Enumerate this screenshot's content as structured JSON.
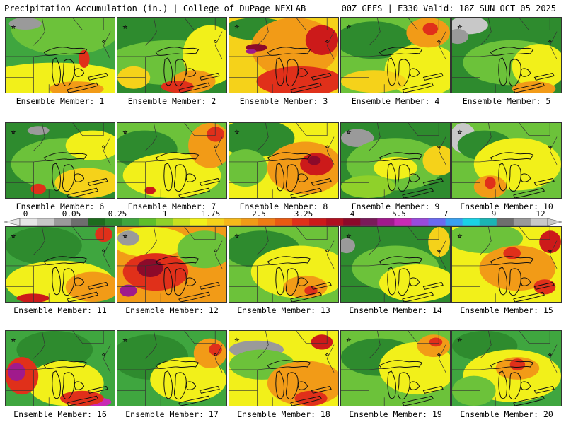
{
  "header": {
    "left": "Precipitation Accumulation (in.) | College of DuPage NEXLAB",
    "right": "00Z GEFS | F330 Valid: 18Z SUN OCT 05 2025"
  },
  "colorbar": {
    "tick_labels": [
      "0",
      "0.05",
      "0.25",
      "1",
      "1.75",
      "2.5",
      "3.25",
      "4",
      "5.5",
      "7",
      "9",
      "12"
    ],
    "colors": [
      "#e6e6e6",
      "#c8c8c8",
      "#9a9a9a",
      "#6e6e6e",
      "#1e6b1e",
      "#2e8b2e",
      "#3fa63f",
      "#5ebf2a",
      "#8fd12a",
      "#c8e020",
      "#f2f01a",
      "#f5d21a",
      "#f5b81a",
      "#f29b17",
      "#ef7c14",
      "#e85a12",
      "#e0301a",
      "#cc1a1a",
      "#b01020",
      "#8c0a2a",
      "#7a1a5a",
      "#a01a8c",
      "#c82ab4",
      "#9a4adc",
      "#6a6af0",
      "#3aa0f0",
      "#1ad2e6",
      "#1ab4b4",
      "#6e6e6e",
      "#9a9a9a",
      "#c8c8c8"
    ]
  },
  "panels": [
    {
      "caption": "Ensemble Member: 1",
      "base": "#3fa63f",
      "blobs": [
        [
          "#6cc23a",
          0.55,
          0.15,
          0.5,
          0.35
        ],
        [
          "#f2f01a",
          0.45,
          0.85,
          0.7,
          0.25
        ],
        [
          "#f29b17",
          0.65,
          0.95,
          0.25,
          0.1
        ],
        [
          "#e0301a",
          0.72,
          0.55,
          0.05,
          0.12
        ],
        [
          "#9a9a9a",
          0.18,
          0.08,
          0.15,
          0.08
        ]
      ]
    },
    {
      "caption": "Ensemble Member: 2",
      "base": "#2e8b2e",
      "blobs": [
        [
          "#6cc23a",
          0.5,
          0.6,
          0.6,
          0.3
        ],
        [
          "#f2f01a",
          0.85,
          0.5,
          0.25,
          0.4
        ],
        [
          "#f29b17",
          0.7,
          0.85,
          0.2,
          0.15
        ],
        [
          "#e0301a",
          0.55,
          0.92,
          0.15,
          0.08
        ],
        [
          "#f5d21a",
          0.15,
          0.8,
          0.15,
          0.15
        ]
      ]
    },
    {
      "caption": "Ensemble Member: 3",
      "base": "#f5d21a",
      "blobs": [
        [
          "#2e8b2e",
          0.25,
          0.15,
          0.3,
          0.15
        ],
        [
          "#f29b17",
          0.6,
          0.4,
          0.4,
          0.4
        ],
        [
          "#e0301a",
          0.65,
          0.85,
          0.4,
          0.2
        ],
        [
          "#8c0a2a",
          0.25,
          0.4,
          0.1,
          0.05
        ],
        [
          "#a01a8c",
          0.2,
          0.45,
          0.05,
          0.03
        ],
        [
          "#cc1a1a",
          0.85,
          0.3,
          0.15,
          0.2
        ]
      ]
    },
    {
      "caption": "Ensemble Member: 4",
      "base": "#6cc23a",
      "blobs": [
        [
          "#2e8b2e",
          0.3,
          0.3,
          0.35,
          0.25
        ],
        [
          "#f2f01a",
          0.75,
          0.7,
          0.35,
          0.35
        ],
        [
          "#f29b17",
          0.8,
          0.2,
          0.2,
          0.2
        ],
        [
          "#e0301a",
          0.82,
          0.15,
          0.07,
          0.08
        ],
        [
          "#f5d21a",
          0.3,
          0.85,
          0.3,
          0.15
        ]
      ]
    },
    {
      "caption": "Ensemble Member: 5",
      "base": "#2e8b2e",
      "blobs": [
        [
          "#c8c8c8",
          0.15,
          0.1,
          0.18,
          0.12
        ],
        [
          "#9a9a9a",
          0.05,
          0.25,
          0.1,
          0.1
        ],
        [
          "#6cc23a",
          0.55,
          0.6,
          0.45,
          0.3
        ],
        [
          "#f2f01a",
          0.8,
          0.65,
          0.25,
          0.3
        ],
        [
          "#f29b17",
          0.75,
          0.95,
          0.2,
          0.1
        ]
      ]
    },
    {
      "caption": "Ensemble Member: 6",
      "base": "#2e8b2e",
      "blobs": [
        [
          "#6cc23a",
          0.55,
          0.55,
          0.5,
          0.35
        ],
        [
          "#f2f01a",
          0.8,
          0.3,
          0.25,
          0.2
        ],
        [
          "#f5d21a",
          0.75,
          0.8,
          0.3,
          0.2
        ],
        [
          "#e0301a",
          0.3,
          0.88,
          0.07,
          0.07
        ],
        [
          "#9a9a9a",
          0.3,
          0.1,
          0.1,
          0.06
        ]
      ]
    },
    {
      "caption": "Ensemble Member: 7",
      "base": "#6cc23a",
      "blobs": [
        [
          "#2e8b2e",
          0.25,
          0.35,
          0.3,
          0.25
        ],
        [
          "#f2f01a",
          0.5,
          0.7,
          0.45,
          0.3
        ],
        [
          "#f29b17",
          0.85,
          0.3,
          0.2,
          0.3
        ],
        [
          "#e0301a",
          0.9,
          0.15,
          0.08,
          0.1
        ],
        [
          "#cc1a1a",
          0.3,
          0.9,
          0.05,
          0.05
        ]
      ]
    },
    {
      "caption": "Ensemble Member: 8",
      "base": "#f2f01a",
      "blobs": [
        [
          "#2e8b2e",
          0.25,
          0.2,
          0.35,
          0.25
        ],
        [
          "#6cc23a",
          0.15,
          0.6,
          0.2,
          0.25
        ],
        [
          "#f29b17",
          0.7,
          0.6,
          0.35,
          0.35
        ],
        [
          "#cc1a1a",
          0.8,
          0.55,
          0.15,
          0.15
        ],
        [
          "#8c0a2a",
          0.78,
          0.5,
          0.06,
          0.06
        ]
      ]
    },
    {
      "caption": "Ensemble Member: 9",
      "base": "#2e8b2e",
      "blobs": [
        [
          "#9a9a9a",
          0.15,
          0.2,
          0.15,
          0.12
        ],
        [
          "#6cc23a",
          0.5,
          0.55,
          0.45,
          0.35
        ],
        [
          "#f2f01a",
          0.5,
          0.6,
          0.2,
          0.15
        ],
        [
          "#f5d21a",
          0.9,
          0.5,
          0.15,
          0.2
        ],
        [
          "#8fd12a",
          0.25,
          0.85,
          0.25,
          0.15
        ]
      ]
    },
    {
      "caption": "Ensemble Member: 10",
      "base": "#6cc23a",
      "blobs": [
        [
          "#c8c8c8",
          0.1,
          0.2,
          0.12,
          0.2
        ],
        [
          "#2e8b2e",
          0.3,
          0.3,
          0.25,
          0.2
        ],
        [
          "#f2f01a",
          0.6,
          0.55,
          0.4,
          0.35
        ],
        [
          "#f29b17",
          0.35,
          0.85,
          0.15,
          0.15
        ],
        [
          "#e0301a",
          0.35,
          0.8,
          0.05,
          0.08
        ]
      ]
    },
    {
      "caption": "Ensemble Member: 11",
      "base": "#3fa63f",
      "blobs": [
        [
          "#2e8b2e",
          0.35,
          0.25,
          0.35,
          0.25
        ],
        [
          "#f2f01a",
          0.5,
          0.75,
          0.5,
          0.3
        ],
        [
          "#f29b17",
          0.8,
          0.8,
          0.25,
          0.2
        ],
        [
          "#e0301a",
          0.9,
          0.1,
          0.08,
          0.1
        ],
        [
          "#cc1a1a",
          0.25,
          0.95,
          0.15,
          0.06
        ]
      ]
    },
    {
      "caption": "Ensemble Member: 12",
      "base": "#f29b17",
      "blobs": [
        [
          "#f2f01a",
          0.3,
          0.2,
          0.35,
          0.2
        ],
        [
          "#9a9a9a",
          0.1,
          0.15,
          0.1,
          0.1
        ],
        [
          "#e0301a",
          0.35,
          0.6,
          0.3,
          0.25
        ],
        [
          "#8c0a2a",
          0.3,
          0.55,
          0.12,
          0.12
        ],
        [
          "#a01a8c",
          0.1,
          0.85,
          0.08,
          0.08
        ],
        [
          "#6cc23a",
          0.8,
          0.3,
          0.25,
          0.25
        ]
      ]
    },
    {
      "caption": "Ensemble Member: 13",
      "base": "#6cc23a",
      "blobs": [
        [
          "#2e8b2e",
          0.3,
          0.3,
          0.35,
          0.25
        ],
        [
          "#f2f01a",
          0.65,
          0.6,
          0.45,
          0.35
        ],
        [
          "#f29b17",
          0.7,
          0.8,
          0.2,
          0.15
        ],
        [
          "#e0301a",
          0.75,
          0.85,
          0.06,
          0.06
        ]
      ]
    },
    {
      "caption": "Ensemble Member: 14",
      "base": "#2e8b2e",
      "blobs": [
        [
          "#9a9a9a",
          0.05,
          0.25,
          0.08,
          0.1
        ],
        [
          "#6cc23a",
          0.5,
          0.55,
          0.4,
          0.3
        ],
        [
          "#f2f01a",
          0.7,
          0.75,
          0.35,
          0.25
        ],
        [
          "#f5d21a",
          0.9,
          0.2,
          0.1,
          0.2
        ]
      ]
    },
    {
      "caption": "Ensemble Member: 15",
      "base": "#f2f01a",
      "blobs": [
        [
          "#6cc23a",
          0.3,
          0.15,
          0.35,
          0.2
        ],
        [
          "#f29b17",
          0.6,
          0.55,
          0.35,
          0.3
        ],
        [
          "#e0301a",
          0.55,
          0.35,
          0.08,
          0.08
        ],
        [
          "#cc1a1a",
          0.9,
          0.2,
          0.1,
          0.15
        ],
        [
          "#e0301a",
          0.85,
          0.8,
          0.1,
          0.1
        ]
      ]
    },
    {
      "caption": "Ensemble Member: 16",
      "base": "#3fa63f",
      "blobs": [
        [
          "#2e8b2e",
          0.45,
          0.25,
          0.35,
          0.25
        ],
        [
          "#f2f01a",
          0.55,
          0.7,
          0.35,
          0.3
        ],
        [
          "#e0301a",
          0.15,
          0.6,
          0.15,
          0.25
        ],
        [
          "#a01a8c",
          0.1,
          0.55,
          0.08,
          0.12
        ],
        [
          "#c82ab4",
          0.85,
          0.95,
          0.12,
          0.06
        ],
        [
          "#e0301a",
          0.7,
          0.9,
          0.2,
          0.1
        ]
      ]
    },
    {
      "caption": "Ensemble Member: 17",
      "base": "#3fa63f",
      "blobs": [
        [
          "#2e8b2e",
          0.3,
          0.35,
          0.35,
          0.3
        ],
        [
          "#f2f01a",
          0.65,
          0.65,
          0.35,
          0.3
        ],
        [
          "#f29b17",
          0.85,
          0.3,
          0.15,
          0.2
        ],
        [
          "#e0301a",
          0.9,
          0.25,
          0.06,
          0.08
        ]
      ]
    },
    {
      "caption": "Ensemble Member: 18",
      "base": "#f2f01a",
      "blobs": [
        [
          "#9a9a9a",
          0.25,
          0.25,
          0.25,
          0.12
        ],
        [
          "#6cc23a",
          0.3,
          0.45,
          0.3,
          0.2
        ],
        [
          "#f29b17",
          0.7,
          0.7,
          0.35,
          0.3
        ],
        [
          "#e0301a",
          0.75,
          0.9,
          0.15,
          0.1
        ],
        [
          "#cc1a1a",
          0.85,
          0.15,
          0.1,
          0.1
        ]
      ]
    },
    {
      "caption": "Ensemble Member: 19",
      "base": "#6cc23a",
      "blobs": [
        [
          "#2e8b2e",
          0.35,
          0.35,
          0.35,
          0.25
        ],
        [
          "#f2f01a",
          0.7,
          0.5,
          0.35,
          0.35
        ],
        [
          "#f29b17",
          0.85,
          0.2,
          0.15,
          0.15
        ],
        [
          "#e0301a",
          0.87,
          0.15,
          0.06,
          0.06
        ]
      ]
    },
    {
      "caption": "Ensemble Member: 20",
      "base": "#3fa63f",
      "blobs": [
        [
          "#2e8b2e",
          0.3,
          0.2,
          0.3,
          0.2
        ],
        [
          "#f2f01a",
          0.55,
          0.6,
          0.45,
          0.35
        ],
        [
          "#f29b17",
          0.6,
          0.5,
          0.2,
          0.15
        ],
        [
          "#e0301a",
          0.6,
          0.45,
          0.07,
          0.08
        ],
        [
          "#6cc23a",
          0.2,
          0.8,
          0.2,
          0.2
        ]
      ]
    }
  ]
}
